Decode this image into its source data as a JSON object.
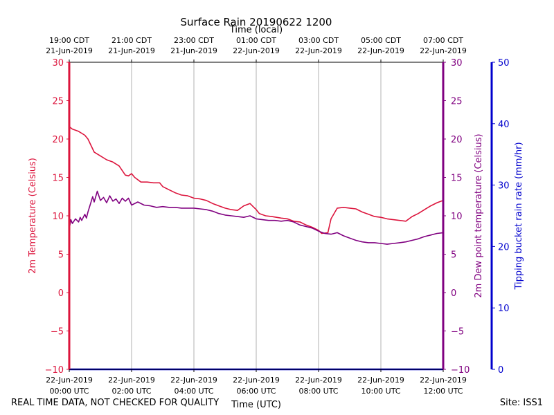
{
  "chart_data": {
    "type": "line",
    "title": "Surface Rain 20190622 1200",
    "top_axis_label": "Time (local)",
    "xlabel": "Time (UTC)",
    "x_ticks_hours": [
      0,
      2,
      4,
      6,
      8,
      10,
      12
    ],
    "x_tick_labels_utc": [
      [
        "22-Jun-2019",
        "00:00 UTC"
      ],
      [
        "22-Jun-2019",
        "02:00 UTC"
      ],
      [
        "22-Jun-2019",
        "04:00 UTC"
      ],
      [
        "22-Jun-2019",
        "06:00 UTC"
      ],
      [
        "22-Jun-2019",
        "08:00 UTC"
      ],
      [
        "22-Jun-2019",
        "10:00 UTC"
      ],
      [
        "22-Jun-2019",
        "12:00 UTC"
      ]
    ],
    "x_tick_labels_local": [
      [
        "19:00 CDT",
        "21-Jun-2019"
      ],
      [
        "21:00 CDT",
        "21-Jun-2019"
      ],
      [
        "23:00 CDT",
        "21-Jun-2019"
      ],
      [
        "01:00 CDT",
        "22-Jun-2019"
      ],
      [
        "03:00 CDT",
        "22-Jun-2019"
      ],
      [
        "05:00 CDT",
        "22-Jun-2019"
      ],
      [
        "07:00 CDT",
        "22-Jun-2019"
      ]
    ],
    "xlim": [
      0,
      12
    ],
    "left_axis": {
      "label": "2m Temperature (Celsius)",
      "ylim": [
        -10,
        30
      ],
      "ticks": [
        -10,
        -5,
        0,
        5,
        10,
        15,
        20,
        25,
        30
      ],
      "color": "#dc143c"
    },
    "right_axis_1": {
      "label": "2m Dew point temperature (Celsius)",
      "ylim": [
        -10,
        30
      ],
      "ticks": [
        -10,
        -5,
        0,
        5,
        10,
        15,
        20,
        25,
        30
      ],
      "color": "#800080"
    },
    "right_axis_2": {
      "label": "Tipping bucket rain rate (mm/hr)",
      "ylim": [
        0,
        50
      ],
      "ticks": [
        0,
        10,
        20,
        30,
        40,
        50
      ],
      "color": "#0000cd"
    },
    "series": [
      {
        "name": "2m Temperature",
        "axis": "left",
        "color": "#dc143c",
        "x": [
          0,
          0.1,
          0.3,
          0.5,
          0.6,
          0.8,
          1.0,
          1.2,
          1.4,
          1.6,
          1.8,
          1.9,
          2.0,
          2.1,
          2.3,
          2.5,
          2.7,
          2.9,
          3.0,
          3.2,
          3.4,
          3.6,
          3.8,
          4.0,
          4.2,
          4.4,
          4.6,
          4.8,
          5.0,
          5.2,
          5.4,
          5.6,
          5.8,
          5.9,
          6.0,
          6.1,
          6.3,
          6.5,
          6.8,
          7.0,
          7.2,
          7.4,
          7.6,
          7.8,
          8.0,
          8.1,
          8.3,
          8.4,
          8.6,
          8.8,
          9.0,
          9.2,
          9.4,
          9.6,
          9.8,
          10.0,
          10.2,
          10.4,
          10.6,
          10.8,
          11.0,
          11.2,
          11.4,
          11.6,
          11.8,
          12.0
        ],
        "values": [
          21.6,
          21.3,
          21.0,
          20.5,
          20.0,
          18.3,
          17.8,
          17.3,
          17.0,
          16.5,
          15.3,
          15.2,
          15.5,
          15.0,
          14.4,
          14.4,
          14.3,
          14.3,
          13.8,
          13.4,
          13.0,
          12.7,
          12.6,
          12.3,
          12.2,
          12.0,
          11.6,
          11.3,
          11.0,
          10.8,
          10.7,
          11.3,
          11.6,
          11.2,
          10.8,
          10.3,
          10.0,
          9.9,
          9.7,
          9.6,
          9.3,
          9.2,
          8.8,
          8.5,
          8.1,
          7.7,
          7.8,
          9.6,
          11.0,
          11.1,
          11.0,
          10.9,
          10.5,
          10.2,
          9.9,
          9.8,
          9.6,
          9.5,
          9.4,
          9.3,
          9.9,
          10.3,
          10.8,
          11.3,
          11.7,
          12.0
        ]
      },
      {
        "name": "2m Dew point temperature",
        "axis": "right_1",
        "color": "#800080",
        "x": [
          0,
          0.05,
          0.1,
          0.2,
          0.3,
          0.35,
          0.4,
          0.5,
          0.55,
          0.6,
          0.7,
          0.75,
          0.8,
          0.9,
          1.0,
          1.1,
          1.2,
          1.3,
          1.4,
          1.5,
          1.6,
          1.7,
          1.8,
          1.9,
          2.0,
          2.2,
          2.4,
          2.6,
          2.8,
          3.0,
          3.2,
          3.4,
          3.6,
          3.8,
          4.0,
          4.2,
          4.4,
          4.6,
          4.8,
          5.0,
          5.2,
          5.4,
          5.6,
          5.8,
          6.0,
          6.2,
          6.4,
          6.6,
          6.8,
          7.0,
          7.2,
          7.4,
          7.6,
          7.8,
          8.0,
          8.2,
          8.4,
          8.6,
          8.8,
          9.0,
          9.2,
          9.4,
          9.6,
          9.8,
          10.0,
          10.2,
          10.4,
          10.6,
          10.8,
          11.0,
          11.2,
          11.4,
          11.6,
          11.8,
          12.0
        ],
        "values": [
          8.3,
          9.5,
          9.0,
          9.6,
          9.2,
          9.8,
          9.4,
          10.2,
          9.7,
          10.5,
          11.8,
          12.5,
          11.8,
          13.2,
          12.0,
          12.4,
          11.7,
          12.6,
          11.9,
          12.2,
          11.6,
          12.3,
          11.9,
          12.3,
          11.4,
          11.8,
          11.4,
          11.3,
          11.1,
          11.2,
          11.1,
          11.1,
          11.0,
          11.0,
          11.0,
          10.9,
          10.8,
          10.6,
          10.3,
          10.1,
          10.0,
          9.9,
          9.8,
          10.0,
          9.6,
          9.5,
          9.4,
          9.4,
          9.3,
          9.4,
          9.2,
          8.8,
          8.6,
          8.4,
          8.0,
          7.7,
          7.6,
          7.8,
          7.4,
          7.1,
          6.8,
          6.6,
          6.5,
          6.5,
          6.4,
          6.3,
          6.4,
          6.5,
          6.6,
          6.8,
          7.0,
          7.3,
          7.5,
          7.7,
          7.8
        ]
      },
      {
        "name": "Tipping bucket rain rate",
        "axis": "right_2",
        "color": "#0000cd",
        "x": [
          0,
          12
        ],
        "values": [
          0,
          0
        ]
      }
    ]
  },
  "footer": {
    "left": "REAL TIME DATA, NOT CHECKED FOR QUALITY",
    "right": "Site: ISS1"
  }
}
